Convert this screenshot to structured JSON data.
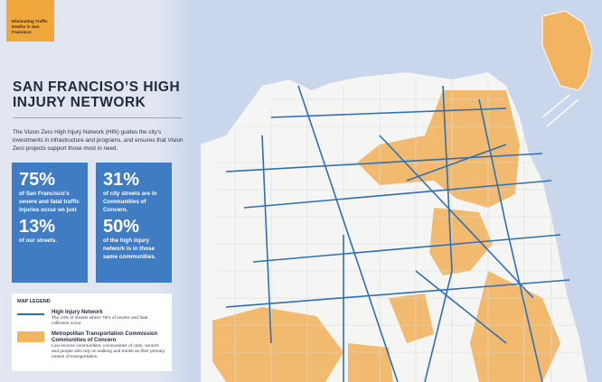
{
  "badge": "Eliminating Traffic Deaths in San Francisco",
  "title": "SAN FRANCISO’S HIGH INJURY NETWORK",
  "description": "The Vision Zero High Injury Network (HIN) guides the city’s investments in infrastructure and programs, and ensures that Vision Zero projects support those most in need.",
  "stats": [
    {
      "figure1": "75%",
      "text1": "of San Francisco’s severe and fatal traffic injuries occur on just",
      "figure2": "13%",
      "text2": "of our streets."
    },
    {
      "figure1": "31%",
      "text1": "of city streets are in Communities of Concern.",
      "figure2": "50%",
      "text2": "of the high injury network is in those same communities."
    }
  ],
  "legend": {
    "heading": "MAP LEGEND",
    "items": [
      {
        "title": "High Injury Network",
        "description": "The 13% of streets where 75% of severe and fatal collisions occur."
      },
      {
        "title": "Metropolitan Transportation Commission Communities of Concern",
        "description": "Low-income communities, communities of color, seniors and people who rely on walking and transit as their primary means of transportation."
      }
    ]
  }
}
